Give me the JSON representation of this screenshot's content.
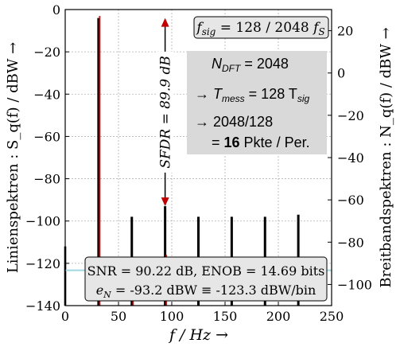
{
  "chart_data": {
    "type": "bar",
    "title": "",
    "xlabel": "f / Hz →",
    "ylabel_left": "Linienspektren : S_q(f) / dBW →",
    "ylabel_right": "Breitbandspektren : N_q(f) / dBW →",
    "xlim": [
      0,
      250
    ],
    "ylim_left": [
      -140,
      0
    ],
    "ylim_right": [
      -110,
      30
    ],
    "grid": true,
    "x_ticks": [
      "0",
      "50",
      "100",
      "150",
      "200",
      "250"
    ],
    "y_ticks_left": [
      "0",
      "−20",
      "−40",
      "−60",
      "−80",
      "−100",
      "−120",
      "−140"
    ],
    "y_ticks_right": [
      "20",
      "0",
      "−20",
      "−40",
      "−60",
      "−80",
      "−100"
    ],
    "series": [
      {
        "color": "#000000",
        "x": [
          0,
          31.25,
          62.5,
          93.75,
          125,
          156.25,
          187.5,
          218.75
        ],
        "values": [
          -112,
          -4,
          -98,
          -93,
          -98,
          -98,
          -98,
          -97
        ]
      },
      {
        "color": "#c00000",
        "x": [
          31.25,
          62.5,
          93.75
        ],
        "values": [
          -3,
          -117,
          -116
        ]
      },
      {
        "color": "#9fd8e0",
        "x": [
          0,
          250
        ],
        "values": [
          -123.3,
          -123.3
        ]
      }
    ],
    "annotations": {
      "sfdr_label": "SFDR = 89.9 dB",
      "sfdr_from": -4,
      "sfdr_to": -93,
      "fsig": {
        "lhs": "f",
        "lhs_sub": "sig",
        "mid": " = 128 / 2048 ",
        "rhs": "f",
        "rhs_sub": "S"
      },
      "info_lines": [
        {
          "main": "N",
          "sub": "DFT",
          "rest": " = 2048"
        },
        {
          "main": "→ T",
          "sub": "mess",
          "rest": " = 128 T",
          "sub2": "sig"
        },
        {
          "main": "→ 2048/128"
        },
        {
          "main": "= ",
          "bold": "16",
          "rest": " Pkte / Per."
        }
      ],
      "snr_line1": "SNR = 90.22 dB, ENOB = 14.69 bits",
      "snr_line2_prefix": "e",
      "snr_line2_sub": "N",
      "snr_line2_rest": " = -93.2 dBW ≡ -123.3 dBW/bin"
    }
  }
}
